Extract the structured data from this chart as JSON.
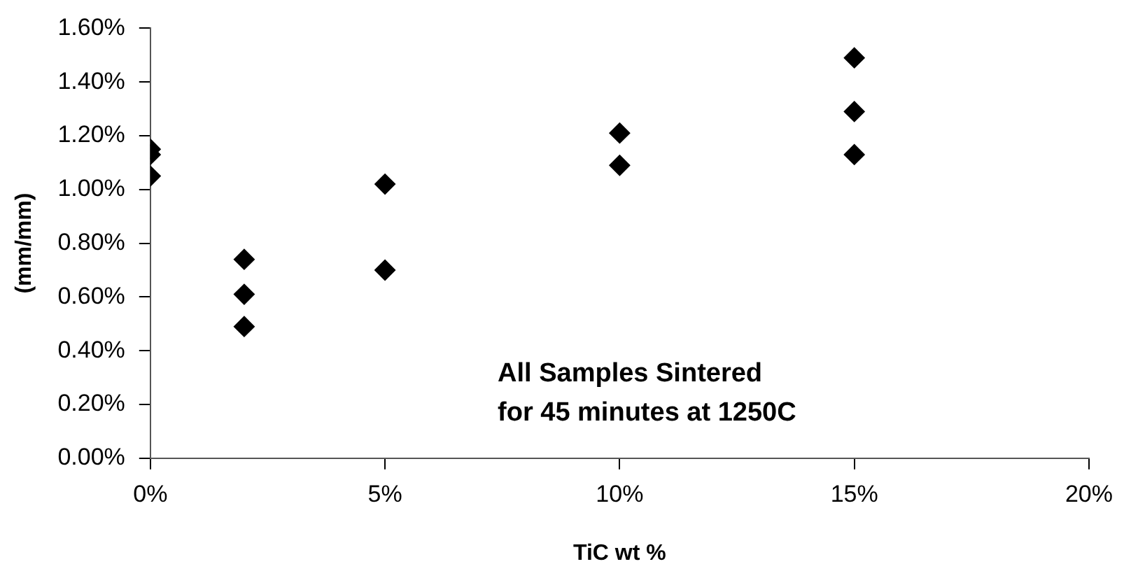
{
  "chart_data": {
    "type": "scatter",
    "xlabel": "TiC wt %",
    "ylabel": "(mm/mm)",
    "x": [
      0,
      0,
      0,
      2,
      2,
      2,
      5,
      5,
      10,
      10,
      15,
      15,
      15
    ],
    "values": [
      1.15,
      1.13,
      1.05,
      0.74,
      0.61,
      0.49,
      1.02,
      0.7,
      1.21,
      1.09,
      1.49,
      1.29,
      1.13
    ],
    "color": "#000000",
    "marker": "diamond",
    "grid": false,
    "legend": false,
    "xlim": [
      0,
      20
    ],
    "xticks": [
      {
        "value": 0,
        "label": "0%"
      },
      {
        "value": 5,
        "label": "5%"
      },
      {
        "value": 10,
        "label": "10%"
      },
      {
        "value": 15,
        "label": "15%"
      },
      {
        "value": 20,
        "label": "20%"
      }
    ],
    "ylim": [
      0,
      1.6
    ],
    "yticks": [
      {
        "value": 0,
        "label": "0.00%"
      },
      {
        "value": 0.2,
        "label": "0.20%"
      },
      {
        "value": 0.4,
        "label": "0.40%"
      },
      {
        "value": 0.6,
        "label": "0.60%"
      },
      {
        "value": 0.8,
        "label": "0.80%"
      },
      {
        "value": 1.0,
        "label": "1.00%"
      },
      {
        "value": 1.2,
        "label": "1.20%"
      },
      {
        "value": 1.4,
        "label": "1.40%"
      },
      {
        "value": 1.6,
        "label": "1.60%"
      }
    ],
    "annotations": [
      "All Samples Sintered\nfor 45 minutes at 1250C"
    ]
  }
}
